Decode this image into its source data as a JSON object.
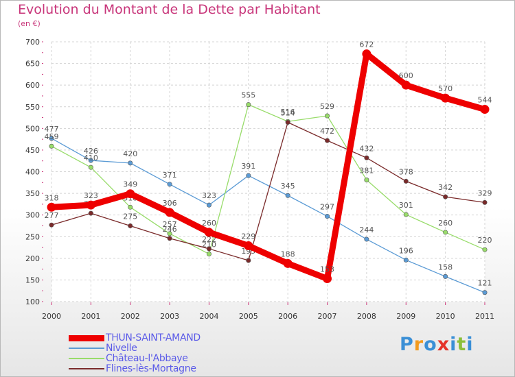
{
  "header": {
    "title": "Evolution du Montant de la Dette par Habitant",
    "unit": "(en €)"
  },
  "logo": {
    "letters": [
      "P",
      "r",
      "o",
      "x",
      "i",
      "t",
      "i"
    ],
    "colors": [
      "#3a8fd6",
      "#f39a1c",
      "#3a8fd6",
      "#e5332a",
      "#3a8fd6",
      "#8bbf3a",
      "#3a8fd6"
    ]
  },
  "chart_data": {
    "type": "line",
    "x": [
      "2000",
      "2001",
      "2002",
      "2003",
      "2004",
      "2005",
      "2006",
      "2007",
      "2008",
      "2009",
      "2010",
      "2011"
    ],
    "ylim": [
      100,
      700
    ],
    "yticks": [
      "100",
      "150",
      "200",
      "250",
      "300",
      "350",
      "400",
      "450",
      "500",
      "550",
      "600",
      "650",
      "700"
    ],
    "grid": true,
    "legend_position": "bottom-left",
    "series": [
      {
        "name": "Nivelle",
        "color": "#5b9bd5",
        "values": [
          477,
          426,
          420,
          371,
          323,
          391,
          345,
          297,
          244,
          196,
          158,
          121
        ]
      },
      {
        "name": "Château-l'Abbaye",
        "color": "#98dc6a",
        "values": [
          459,
          410,
          318,
          257,
          210,
          555,
          516,
          529,
          381,
          301,
          260,
          220
        ]
      },
      {
        "name": "Flines-lès-Mortagne",
        "color": "#7a2a2a",
        "values": [
          277,
          304,
          275,
          246,
          222,
          195,
          514,
          472,
          432,
          378,
          342,
          329
        ]
      },
      {
        "name": "THUN-SAINT-AMAND",
        "color": "#ee0000",
        "values": [
          318,
          323,
          349,
          306,
          260,
          229,
          188,
          153,
          672,
          600,
          570,
          544
        ]
      }
    ]
  }
}
